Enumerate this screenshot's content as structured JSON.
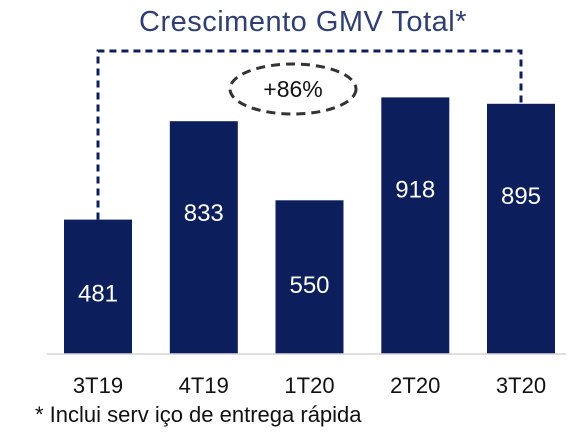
{
  "chart_data": {
    "type": "bar",
    "title": "Crescimento GMV Total*",
    "categories": [
      "3T19",
      "4T19",
      "1T20",
      "2T20",
      "3T20"
    ],
    "values": [
      481,
      833,
      550,
      918,
      895
    ],
    "data_labels": [
      "481",
      "833",
      "550",
      "918",
      "895"
    ],
    "xlabel": "",
    "ylabel": "",
    "ylim": [
      0,
      1000
    ],
    "grid": false,
    "legend": "none",
    "bar_color": "#0C1F5C",
    "annotation": {
      "text": "+86%",
      "from_category": "3T19",
      "to_category": "3T20"
    },
    "footnote": "* Inclui serv iço de entrega rápida"
  }
}
